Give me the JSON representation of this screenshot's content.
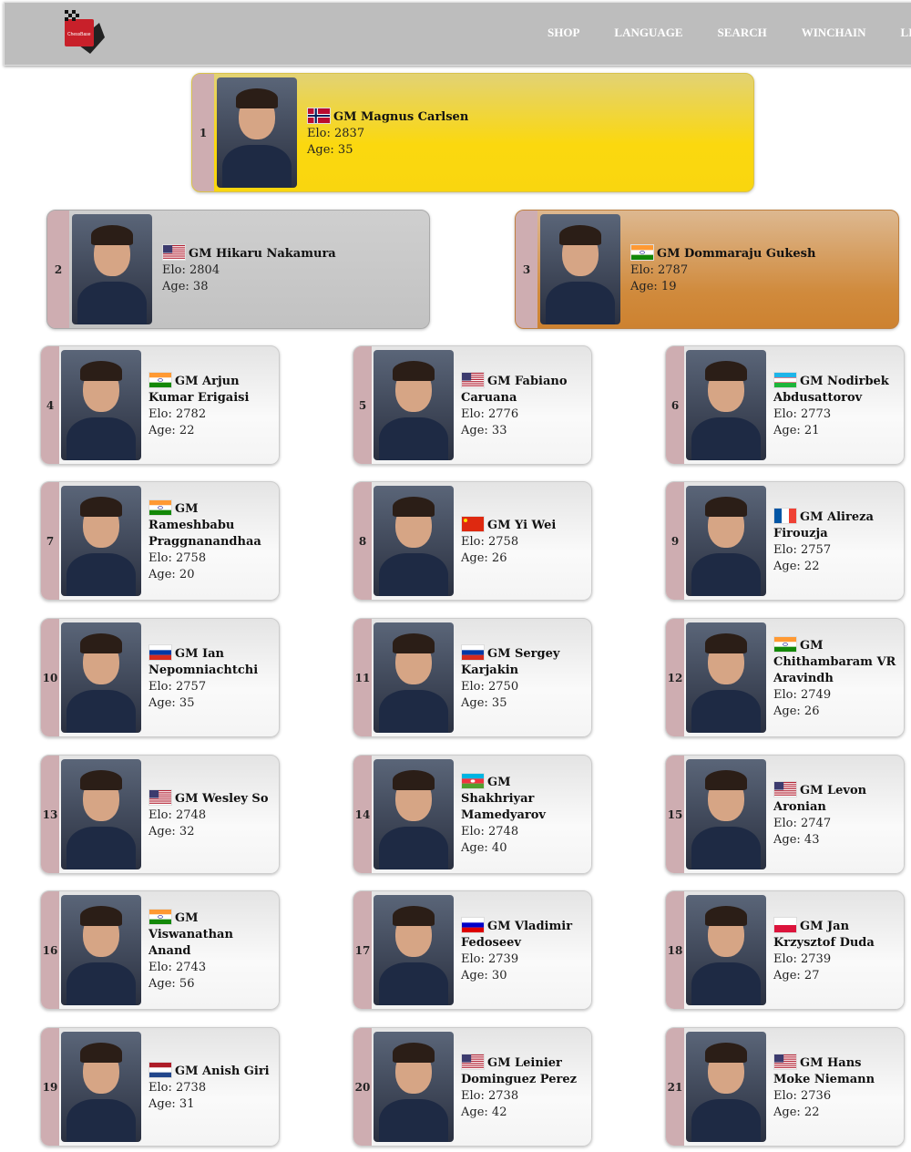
{
  "header": {
    "logo_text": "ChessBase",
    "nav": [
      "SHOP",
      "LANGUAGE",
      "SEARCH",
      "WINCHAIN",
      "LIS"
    ]
  },
  "labels": {
    "elo": "Elo: ",
    "age": "Age: "
  },
  "players": [
    {
      "rank": "1",
      "name": "GM Magnus Carlsen",
      "elo": "2837",
      "age": "35",
      "flag": "norway-flag"
    },
    {
      "rank": "2",
      "name": "GM Hikaru Nakamura",
      "elo": "2804",
      "age": "38",
      "flag": "usa-flag"
    },
    {
      "rank": "3",
      "name": "GM Dommaraju Gukesh",
      "elo": "2787",
      "age": "19",
      "flag": "india-flag"
    },
    {
      "rank": "4",
      "name": "GM Arjun Kumar Erigaisi",
      "elo": "2782",
      "age": "22",
      "flag": "india-flag"
    },
    {
      "rank": "5",
      "name": "GM Fabiano Caruana",
      "elo": "2776",
      "age": "33",
      "flag": "usa-flag"
    },
    {
      "rank": "6",
      "name": "GM Nodirbek Abdusattorov",
      "elo": "2773",
      "age": "21",
      "flag": "uzbekistan-flag"
    },
    {
      "rank": "7",
      "name": "GM Rameshbabu Praggnanandhaa",
      "elo": "2758",
      "age": "20",
      "flag": "india-flag"
    },
    {
      "rank": "8",
      "name": "GM Yi Wei",
      "elo": "2758",
      "age": "26",
      "flag": "china-flag"
    },
    {
      "rank": "9",
      "name": "GM Alireza Firouzja",
      "elo": "2757",
      "age": "22",
      "flag": "france-flag"
    },
    {
      "rank": "10",
      "name": "GM Ian Nepomniachtchi",
      "elo": "2757",
      "age": "35",
      "flag": "russia-flag"
    },
    {
      "rank": "11",
      "name": "GM Sergey Karjakin",
      "elo": "2750",
      "age": "35",
      "flag": "russia-flag"
    },
    {
      "rank": "12",
      "name": "GM Chithambaram VR Aravindh",
      "elo": "2749",
      "age": "26",
      "flag": "india-flag"
    },
    {
      "rank": "13",
      "name": "GM Wesley So",
      "elo": "2748",
      "age": "32",
      "flag": "usa-flag"
    },
    {
      "rank": "14",
      "name": "GM Shakhriyar Mamedyarov",
      "elo": "2748",
      "age": "40",
      "flag": "azerbaijan-flag"
    },
    {
      "rank": "15",
      "name": "GM Levon Aronian",
      "elo": "2747",
      "age": "43",
      "flag": "usa-flag"
    },
    {
      "rank": "16",
      "name": "GM Viswanathan Anand",
      "elo": "2743",
      "age": "56",
      "flag": "india-flag"
    },
    {
      "rank": "17",
      "name": "GM Vladimir Fedoseev",
      "elo": "2739",
      "age": "30",
      "flag": "slovenia-flag"
    },
    {
      "rank": "18",
      "name": "GM Jan Krzysztof Duda",
      "elo": "2739",
      "age": "27",
      "flag": "poland-flag"
    },
    {
      "rank": "19",
      "name": "GM Anish Giri",
      "elo": "2738",
      "age": "31",
      "flag": "netherlands-flag"
    },
    {
      "rank": "20",
      "name": "GM Leinier Dominguez Perez",
      "elo": "2738",
      "age": "42",
      "flag": "usa-flag"
    },
    {
      "rank": "21",
      "name": "GM Hans Moke Niemann",
      "elo": "2736",
      "age": "22",
      "flag": "usa-flag"
    }
  ]
}
